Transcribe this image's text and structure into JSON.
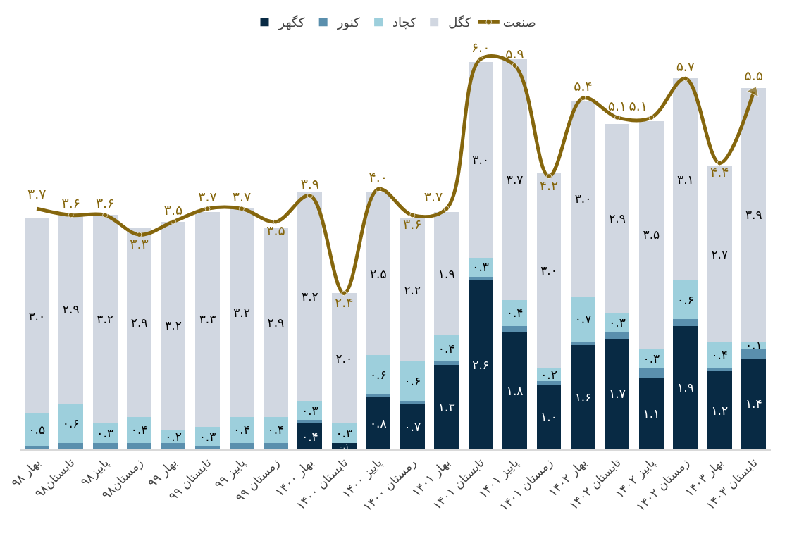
{
  "chart_data": {
    "type": "bar",
    "stacked": true,
    "legend": "top",
    "tick_labels": "x",
    "categories": [
      "بهار ۹۸",
      "تابستان۹۸",
      "پاییز۹۸",
      "زمستان۹۸",
      "بهار ۹۹",
      "تابستان ۹۹",
      "پاییز ۹۹",
      "زمستان ۹۹",
      "بهار ۱۴۰۰",
      "تابستان ۱۴۰۰",
      "پاییز ۱۴۰۰",
      "زمستان ۱۴۰۰",
      "بهار ۱۴۰۱",
      "تابستان ۱۴۰۱",
      "پاییز ۱۴۰۱",
      "زمستان ۱۴۰۱",
      "بهار ۱۴۰۲",
      "تابستان ۱۴۰۲",
      "پاییز ۱۴۰۲",
      "زمستان ۱۴۰۲",
      "بهار ۱۴۰۳",
      "تابستان ۱۴۰۳"
    ],
    "series": [
      {
        "name": "کگهر",
        "color": "#082a44",
        "values": [
          null,
          null,
          null,
          null,
          null,
          null,
          null,
          null,
          0.4,
          0.1,
          0.8,
          0.7,
          1.3,
          2.6,
          1.8,
          1.0,
          1.6,
          1.7,
          1.1,
          1.9,
          1.2,
          1.4
        ],
        "value_labels": [
          null,
          null,
          null,
          null,
          null,
          null,
          null,
          null,
          "۰.۴",
          "۰.۱",
          "۰.۸",
          "۰.۷",
          "۱.۳",
          "۲.۶",
          "۱.۸",
          "۱.۰",
          "۱.۶",
          "۱.۷",
          "۱.۱",
          "۱.۹",
          "۱.۲",
          "۱.۴"
        ]
      },
      {
        "name": "کنور",
        "color": "#5a8fad",
        "values": [
          0.05,
          0.1,
          0.1,
          0.1,
          0.1,
          0.05,
          0.1,
          0.1,
          0.05,
          null,
          0.05,
          0.05,
          0.05,
          0.05,
          0.1,
          0.05,
          0.05,
          0.1,
          0.15,
          0.1,
          0.05,
          0.15
        ]
      },
      {
        "name": "کچاد",
        "color": "#9dcfdc",
        "values": [
          0.5,
          0.6,
          0.3,
          0.4,
          0.2,
          0.3,
          0.4,
          0.4,
          0.3,
          0.3,
          0.6,
          0.6,
          0.4,
          0.3,
          0.4,
          0.2,
          0.7,
          0.3,
          0.3,
          0.6,
          0.4,
          0.1
        ],
        "value_labels": [
          "۰.۵",
          "۰.۶",
          "۰.۳",
          "۰.۴",
          "۰.۲",
          "۰.۳",
          "۰.۴",
          "۰.۴",
          "۰.۳",
          "۰.۳",
          "۰.۶",
          "۰.۶",
          "۰.۴",
          "۰.۳",
          "۰.۴",
          "۰.۲",
          "۰.۷",
          "۰.۳",
          "۰.۳",
          "۰.۶",
          "۰.۴",
          "۰.۱"
        ]
      },
      {
        "name": "کگل",
        "color": "#d1d7e1",
        "values": [
          3.0,
          2.9,
          3.2,
          2.9,
          3.2,
          3.3,
          3.2,
          2.9,
          3.2,
          2.0,
          2.5,
          2.2,
          1.9,
          3.0,
          3.7,
          3.0,
          3.0,
          2.9,
          3.5,
          3.1,
          2.7,
          3.9
        ],
        "value_labels": [
          "۳.۰",
          "۲.۹",
          "۳.۲",
          "۲.۹",
          "۳.۲",
          "۳.۳",
          "۳.۲",
          "۲.۹",
          "۳.۲",
          "۲.۰",
          "۲.۵",
          "۲.۲",
          "۱.۹",
          "۳.۰",
          "۳.۷",
          "۳.۰",
          "۳.۰",
          "۲.۹",
          "۳.۵",
          "۳.۱",
          "۲.۷",
          "۳.۹"
        ]
      },
      {
        "name": "صنعت",
        "type": "line",
        "color": "#85660d",
        "marker": "circle",
        "values": [
          3.7,
          3.6,
          3.6,
          3.3,
          3.5,
          3.7,
          3.7,
          3.5,
          3.9,
          2.4,
          4.0,
          3.6,
          3.7,
          6.0,
          5.9,
          4.2,
          5.4,
          5.1,
          5.1,
          5.7,
          4.4,
          5.5
        ],
        "value_labels": [
          "۳.۷",
          "۳.۶",
          "۳.۶",
          "۳.۳",
          "۳.۵",
          "۳.۷",
          "۳.۷",
          "۳.۵",
          "۳.۹",
          "۲.۴",
          "۴.۰",
          "۳.۶",
          "۳.۷",
          "۶.۰",
          "۵.۹",
          "۴.۲",
          "۵.۴",
          "۵.۱",
          "۵.۱",
          "۵.۷",
          "۴.۴",
          "۵.۵"
        ]
      }
    ]
  }
}
